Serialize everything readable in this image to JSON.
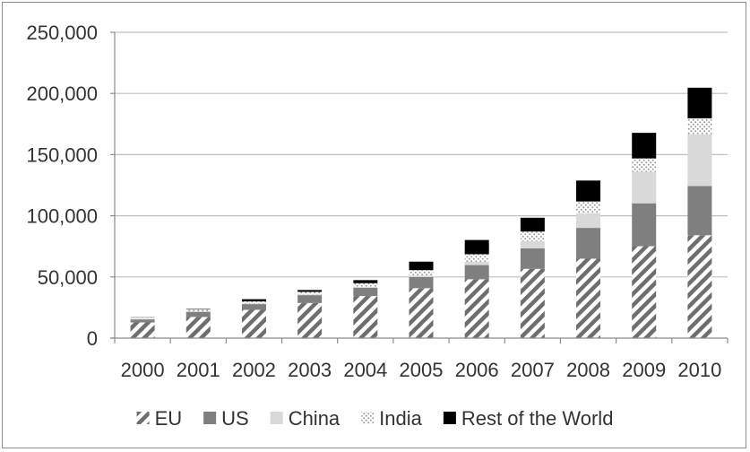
{
  "chart_data": {
    "type": "bar",
    "stacked": true,
    "title": "",
    "xlabel": "",
    "ylabel": "",
    "categories": [
      "2000",
      "2001",
      "2002",
      "2003",
      "2004",
      "2005",
      "2006",
      "2007",
      "2008",
      "2009",
      "2010"
    ],
    "ylim": [
      0,
      250000
    ],
    "yticks": [
      0,
      50000,
      100000,
      150000,
      200000,
      250000
    ],
    "ytick_labels": [
      "0",
      "50,000",
      "100,000",
      "150,000",
      "200,000",
      "250,000"
    ],
    "grid": "horizontal",
    "legend_position": "bottom",
    "series": [
      {
        "name": "EU",
        "pattern": "diagonal-stripes",
        "color": "#6e6e6e",
        "values": [
          12800,
          17300,
          23100,
          28700,
          34400,
          40800,
          48100,
          56600,
          64900,
          75100,
          84100
        ]
      },
      {
        "name": "US",
        "pattern": "solid",
        "color": "#7f7f7f",
        "values": [
          2500,
          4200,
          4700,
          6400,
          6700,
          9100,
          11600,
          16800,
          25200,
          35100,
          40200
        ]
      },
      {
        "name": "China",
        "pattern": "solid",
        "color": "#d9d9d9",
        "values": [
          300,
          400,
          500,
          600,
          800,
          1300,
          2600,
          5900,
          12000,
          25800,
          42300
        ]
      },
      {
        "name": "India",
        "pattern": "dots",
        "color": "#bfbfbf",
        "values": [
          1200,
          1500,
          1700,
          2100,
          3000,
          4400,
          6300,
          7800,
          9600,
          10900,
          13100
        ]
      },
      {
        "name": "Rest of the World",
        "pattern": "solid",
        "color": "#000000",
        "values": [
          200,
          400,
          1800,
          1500,
          2500,
          6900,
          11600,
          11300,
          17100,
          20900,
          25000
        ]
      }
    ]
  }
}
